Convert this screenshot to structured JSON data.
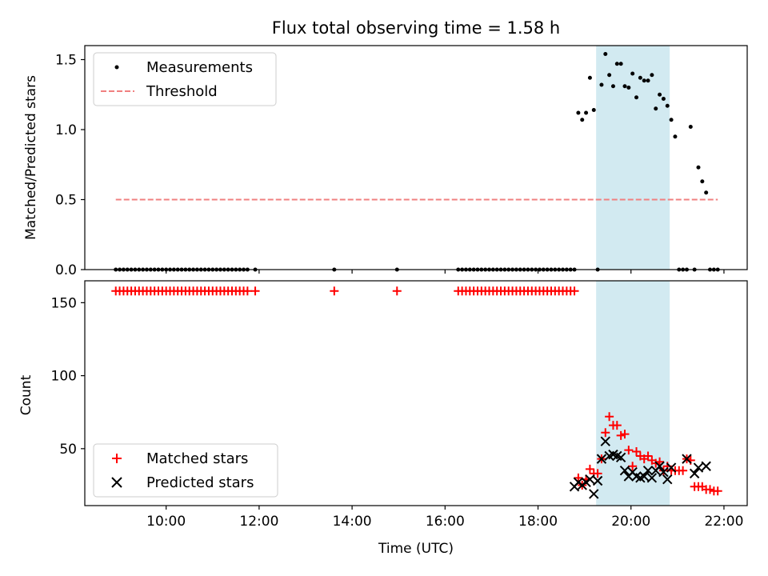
{
  "chart_data": {
    "type": "scatter",
    "title": "Flux total observing time = 1.58 h",
    "xlabel": "Time (UTC)",
    "xlim": [
      "08:15",
      "22:30"
    ],
    "x_ticks": [
      "10:00",
      "12:00",
      "14:00",
      "16:00",
      "18:00",
      "20:00",
      "22:00"
    ],
    "shaded_region": {
      "start": "19:15",
      "end": "20:50",
      "color": "#add8e6"
    },
    "panels": [
      {
        "ylabel": "Matched/Predicted stars",
        "ylim": [
          0,
          1.6
        ],
        "y_ticks": [
          "0.0",
          "0.5",
          "1.0",
          "1.5"
        ],
        "grid": false,
        "legend_position": "upper-left",
        "series": [
          {
            "name": "Measurements",
            "marker": "dot",
            "color": "#000000",
            "x": [
              "08:55",
              "09:00",
              "09:05",
              "09:10",
              "09:15",
              "09:20",
              "09:25",
              "09:30",
              "09:35",
              "09:40",
              "09:45",
              "09:50",
              "09:55",
              "10:00",
              "10:05",
              "10:10",
              "10:15",
              "10:20",
              "10:25",
              "10:30",
              "10:35",
              "10:40",
              "10:45",
              "10:50",
              "10:55",
              "11:00",
              "11:05",
              "11:10",
              "11:15",
              "11:20",
              "11:25",
              "11:30",
              "11:35",
              "11:40",
              "11:45",
              "11:55",
              "13:37",
              "14:58",
              "16:17",
              "16:22",
              "16:27",
              "16:32",
              "16:37",
              "16:42",
              "16:47",
              "16:52",
              "16:57",
              "17:02",
              "17:07",
              "17:12",
              "17:17",
              "17:22",
              "17:27",
              "17:32",
              "17:37",
              "17:42",
              "17:47",
              "17:52",
              "17:57",
              "18:02",
              "18:07",
              "18:12",
              "18:17",
              "18:22",
              "18:27",
              "18:32",
              "18:37",
              "18:42",
              "18:47",
              "18:52",
              "18:57",
              "19:02",
              "19:07",
              "19:12",
              "19:17",
              "19:22",
              "19:27",
              "19:32",
              "19:37",
              "19:42",
              "19:47",
              "19:52",
              "19:57",
              "20:02",
              "20:07",
              "20:12",
              "20:17",
              "20:22",
              "20:27",
              "20:32",
              "20:37",
              "20:42",
              "20:47",
              "20:52",
              "20:57",
              "21:02",
              "21:07",
              "21:12",
              "21:17",
              "21:22",
              "21:27",
              "21:32",
              "21:37",
              "21:42",
              "21:47",
              "21:52"
            ],
            "y": [
              0,
              0,
              0,
              0,
              0,
              0,
              0,
              0,
              0,
              0,
              0,
              0,
              0,
              0,
              0,
              0,
              0,
              0,
              0,
              0,
              0,
              0,
              0,
              0,
              0,
              0,
              0,
              0,
              0,
              0,
              0,
              0,
              0,
              0,
              0,
              0,
              0,
              0,
              0,
              0,
              0,
              0,
              0,
              0,
              0,
              0,
              0,
              0,
              0,
              0,
              0,
              0,
              0,
              0,
              0,
              0,
              0,
              0,
              0,
              0,
              0,
              0,
              0,
              0,
              0,
              0,
              0,
              0,
              0,
              1.12,
              1.07,
              1.12,
              1.37,
              1.14,
              0,
              1.32,
              1.54,
              1.39,
              1.31,
              1.47,
              1.47,
              1.31,
              1.3,
              1.4,
              1.23,
              1.37,
              1.35,
              1.35,
              1.39,
              1.15,
              1.25,
              1.22,
              1.17,
              1.07,
              0.95,
              0,
              0,
              0,
              1.02,
              0,
              0.73,
              0.63,
              0.55,
              0,
              0,
              0
            ]
          },
          {
            "name": "Threshold",
            "marker": "dashed-line",
            "color": "#f08080",
            "x": [
              "08:55",
              "21:52"
            ],
            "y": [
              0.5,
              0.5
            ]
          }
        ]
      },
      {
        "ylabel": "Count",
        "ylim": [
          11,
          165
        ],
        "y_ticks": [
          "50",
          "100",
          "150"
        ],
        "grid": false,
        "legend_position": "lower-left",
        "series": [
          {
            "name": "Matched stars",
            "marker": "plus",
            "color": "#ff0000",
            "x": [
              "08:55",
              "09:00",
              "09:05",
              "09:10",
              "09:15",
              "09:20",
              "09:25",
              "09:30",
              "09:35",
              "09:40",
              "09:45",
              "09:50",
              "09:55",
              "10:00",
              "10:05",
              "10:10",
              "10:15",
              "10:20",
              "10:25",
              "10:30",
              "10:35",
              "10:40",
              "10:45",
              "10:50",
              "10:55",
              "11:00",
              "11:05",
              "11:10",
              "11:15",
              "11:20",
              "11:25",
              "11:30",
              "11:35",
              "11:40",
              "11:45",
              "11:55",
              "13:37",
              "14:58",
              "16:17",
              "16:22",
              "16:27",
              "16:32",
              "16:37",
              "16:42",
              "16:47",
              "16:52",
              "16:57",
              "17:02",
              "17:07",
              "17:12",
              "17:17",
              "17:22",
              "17:27",
              "17:32",
              "17:37",
              "17:42",
              "17:47",
              "17:52",
              "17:57",
              "18:02",
              "18:07",
              "18:12",
              "18:17",
              "18:22",
              "18:27",
              "18:32",
              "18:37",
              "18:42",
              "18:47",
              "18:52",
              "18:57",
              "19:02",
              "19:07",
              "19:12",
              "19:17",
              "19:22",
              "19:27",
              "19:32",
              "19:37",
              "19:42",
              "19:47",
              "19:52",
              "19:57",
              "20:02",
              "20:07",
              "20:12",
              "20:17",
              "20:22",
              "20:27",
              "20:32",
              "20:37",
              "20:42",
              "20:47",
              "20:52",
              "20:57",
              "21:02",
              "21:07",
              "21:12",
              "21:17",
              "21:22",
              "21:27",
              "21:32",
              "21:37",
              "21:42",
              "21:47",
              "21:52"
            ],
            "y": [
              158,
              158,
              158,
              158,
              158,
              158,
              158,
              158,
              158,
              158,
              158,
              158,
              158,
              158,
              158,
              158,
              158,
              158,
              158,
              158,
              158,
              158,
              158,
              158,
              158,
              158,
              158,
              158,
              158,
              158,
              158,
              158,
              158,
              158,
              158,
              158,
              158,
              158,
              158,
              158,
              158,
              158,
              158,
              158,
              158,
              158,
              158,
              158,
              158,
              158,
              158,
              158,
              158,
              158,
              158,
              158,
              158,
              158,
              158,
              158,
              158,
              158,
              158,
              158,
              158,
              158,
              158,
              158,
              158,
              30,
              25,
              29,
              36,
              33,
              33,
              43,
              61,
              72,
              66,
              66,
              59,
              60,
              49,
              38,
              48,
              45,
              43,
              45,
              42,
              40,
              41,
              35,
              38,
              35,
              35,
              35,
              35,
              43,
              42,
              24,
              24,
              24,
              22,
              22,
              21,
              21
            ]
          },
          {
            "name": "Predicted stars",
            "marker": "x",
            "color": "#000000",
            "x": [
              "18:47",
              "18:52",
              "18:57",
              "19:02",
              "19:07",
              "19:12",
              "19:17",
              "19:22",
              "19:27",
              "19:32",
              "19:37",
              "19:42",
              "19:47",
              "19:52",
              "19:57",
              "20:02",
              "20:07",
              "20:12",
              "20:17",
              "20:22",
              "20:27",
              "20:32",
              "20:37",
              "20:42",
              "20:47",
              "20:52",
              "21:12",
              "21:22",
              "21:27",
              "21:37"
            ],
            "y": [
              24,
              27,
              25,
              27,
              29,
              19,
              28,
              43,
              55,
              45,
              46,
              45,
              44,
              35,
              31,
              34,
              31,
              30,
              31,
              35,
              30,
              35,
              38,
              34,
              29,
              37,
              43,
              33,
              37,
              38
            ]
          }
        ]
      }
    ]
  }
}
